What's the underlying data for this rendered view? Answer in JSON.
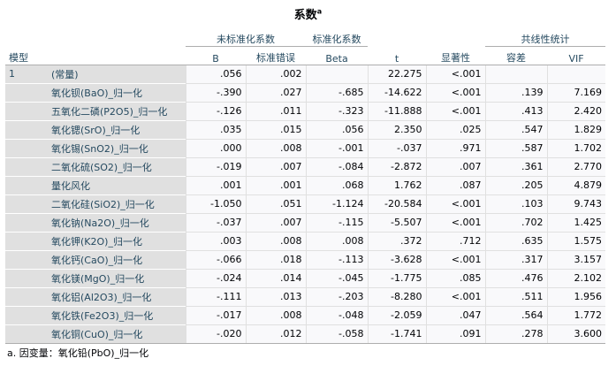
{
  "title": "系数",
  "title_sup": "a",
  "header": {
    "model": "模型",
    "unstd_group": "未标准化系数",
    "std_group": "标准化系数",
    "collin_group": "共线性统计",
    "B": "B",
    "se": "标准错误",
    "beta": "Beta",
    "t": "t",
    "sig": "显著性",
    "tol": "容差",
    "vif": "VIF"
  },
  "model_label": "1",
  "rows": [
    {
      "var": "(常量)",
      "B": ".056",
      "se": ".002",
      "beta": "",
      "t": "22.275",
      "sig": "<.001",
      "tol": "",
      "vif": ""
    },
    {
      "var": "氧化钡(BaO)_归一化",
      "B": "-.390",
      "se": ".027",
      "beta": "-.685",
      "t": "-14.622",
      "sig": "<.001",
      "tol": ".139",
      "vif": "7.169"
    },
    {
      "var": "五氧化二磷(P2O5)_归一化",
      "B": "-.126",
      "se": ".011",
      "beta": "-.323",
      "t": "-11.888",
      "sig": "<.001",
      "tol": ".413",
      "vif": "2.420"
    },
    {
      "var": "氧化锶(SrO)_归一化",
      "B": ".035",
      "se": ".015",
      "beta": ".056",
      "t": "2.350",
      "sig": ".025",
      "tol": ".547",
      "vif": "1.829"
    },
    {
      "var": "氧化锡(SnO2)_归一化",
      "B": ".000",
      "se": ".008",
      "beta": "-.001",
      "t": "-.037",
      "sig": ".971",
      "tol": ".587",
      "vif": "1.702"
    },
    {
      "var": "二氧化硫(SO2)_归一化",
      "B": "-.019",
      "se": ".007",
      "beta": "-.084",
      "t": "-2.872",
      "sig": ".007",
      "tol": ".361",
      "vif": "2.770"
    },
    {
      "var": "量化风化",
      "B": ".001",
      "se": ".001",
      "beta": ".068",
      "t": "1.762",
      "sig": ".087",
      "tol": ".205",
      "vif": "4.879"
    },
    {
      "var": "二氧化硅(SiO2)_归一化",
      "B": "-1.050",
      "se": ".051",
      "beta": "-1.124",
      "t": "-20.584",
      "sig": "<.001",
      "tol": ".103",
      "vif": "9.743"
    },
    {
      "var": "氧化钠(Na2O)_归一化",
      "B": "-.037",
      "se": ".007",
      "beta": "-.115",
      "t": "-5.507",
      "sig": "<.001",
      "tol": ".702",
      "vif": "1.425"
    },
    {
      "var": "氧化钾(K2O)_归一化",
      "B": ".003",
      "se": ".008",
      "beta": ".008",
      "t": ".372",
      "sig": ".712",
      "tol": ".635",
      "vif": "1.575"
    },
    {
      "var": "氧化钙(CaO)_归一化",
      "B": "-.066",
      "se": ".018",
      "beta": "-.113",
      "t": "-3.628",
      "sig": "<.001",
      "tol": ".317",
      "vif": "3.157"
    },
    {
      "var": "氧化镁(MgO)_归一化",
      "B": "-.024",
      "se": ".014",
      "beta": "-.045",
      "t": "-1.775",
      "sig": ".085",
      "tol": ".476",
      "vif": "2.102"
    },
    {
      "var": "氧化铝(Al2O3)_归一化",
      "B": "-.111",
      "se": ".013",
      "beta": "-.203",
      "t": "-8.280",
      "sig": "<.001",
      "tol": ".511",
      "vif": "1.956"
    },
    {
      "var": "氧化铁(Fe2O3)_归一化",
      "B": "-.017",
      "se": ".008",
      "beta": "-.048",
      "t": "-2.059",
      "sig": ".047",
      "tol": ".564",
      "vif": "1.772"
    },
    {
      "var": "氧化铜(CuO)_归一化",
      "B": "-.020",
      "se": ".012",
      "beta": "-.058",
      "t": "-1.741",
      "sig": ".091",
      "tol": ".278",
      "vif": "3.600"
    }
  ],
  "footnote": "a. 因变量：氧化铅(PbO)_归一化"
}
